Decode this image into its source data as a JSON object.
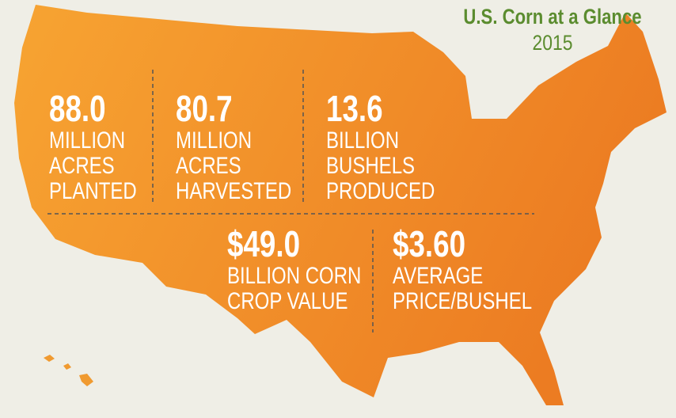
{
  "header": {
    "title": "U.S. Corn at a Glance",
    "subtitle": "2015"
  },
  "stats": [
    {
      "value": "88.0",
      "label": [
        "MILLION",
        "ACRES",
        "PLANTED"
      ]
    },
    {
      "value": "80.7",
      "label": [
        "MILLION",
        "ACRES",
        "HARVESTED"
      ]
    },
    {
      "value": "13.6",
      "label": [
        "BILLION",
        "BUSHELS",
        "PRODUCED"
      ]
    },
    {
      "value": "$49.0",
      "label": [
        "BILLION CORN",
        "CROP VALUE"
      ]
    },
    {
      "value": "$3.60",
      "label": [
        "AVERAGE",
        "PRICE/BUSHEL"
      ]
    }
  ]
}
